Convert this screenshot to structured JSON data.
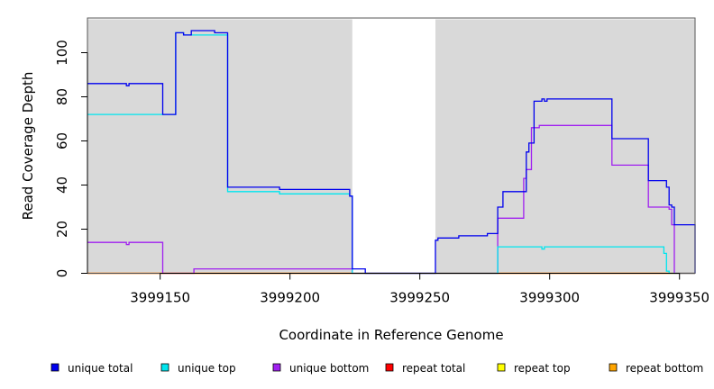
{
  "chart_data": {
    "type": "line",
    "title": "",
    "xlabel": "Coordinate in Reference Genome",
    "ylabel": "Read Coverage Depth",
    "xlim": [
      3999122,
      3999356
    ],
    "ylim": [
      0,
      115
    ],
    "xticks": [
      3999150,
      3999200,
      3999250,
      3999300,
      3999350
    ],
    "yticks": [
      0,
      20,
      40,
      60,
      80,
      100
    ],
    "shaded_regions": [
      {
        "x0": 3999122,
        "x1": 3999224,
        "color": "#d9d9d9"
      },
      {
        "x0": 3999256,
        "x1": 3999356,
        "color": "#d9d9d9"
      }
    ],
    "legend_position": "bottom",
    "series": [
      {
        "name": "unique total",
        "color": "#0000ee",
        "points": [
          [
            3999122,
            86
          ],
          [
            3999137,
            86
          ],
          [
            3999137,
            85
          ],
          [
            3999138,
            85
          ],
          [
            3999138,
            86
          ],
          [
            3999151,
            86
          ],
          [
            3999151,
            72
          ],
          [
            3999156,
            72
          ],
          [
            3999156,
            109
          ],
          [
            3999159,
            109
          ],
          [
            3999159,
            108
          ],
          [
            3999162,
            108
          ],
          [
            3999162,
            110
          ],
          [
            3999171,
            110
          ],
          [
            3999171,
            109
          ],
          [
            3999176,
            109
          ],
          [
            3999176,
            39
          ],
          [
            3999196,
            39
          ],
          [
            3999196,
            38
          ],
          [
            3999223,
            38
          ],
          [
            3999223,
            35
          ],
          [
            3999224,
            35
          ],
          [
            3999224,
            2
          ],
          [
            3999229,
            2
          ],
          [
            3999229,
            0
          ],
          [
            3999256,
            0
          ],
          [
            3999256,
            15
          ],
          [
            3999257,
            15
          ],
          [
            3999257,
            16
          ],
          [
            3999265,
            16
          ],
          [
            3999265,
            17
          ],
          [
            3999276,
            17
          ],
          [
            3999276,
            18
          ],
          [
            3999280,
            18
          ],
          [
            3999280,
            30
          ],
          [
            3999282,
            30
          ],
          [
            3999282,
            37
          ],
          [
            3999291,
            37
          ],
          [
            3999291,
            55
          ],
          [
            3999292,
            55
          ],
          [
            3999292,
            59
          ],
          [
            3999294,
            59
          ],
          [
            3999294,
            78
          ],
          [
            3999297,
            78
          ],
          [
            3999297,
            79
          ],
          [
            3999298,
            79
          ],
          [
            3999298,
            78
          ],
          [
            3999299,
            78
          ],
          [
            3999299,
            79
          ],
          [
            3999324,
            79
          ],
          [
            3999324,
            61
          ],
          [
            3999338,
            61
          ],
          [
            3999338,
            42
          ],
          [
            3999345,
            42
          ],
          [
            3999345,
            39
          ],
          [
            3999346,
            39
          ],
          [
            3999346,
            31
          ],
          [
            3999347,
            31
          ],
          [
            3999347,
            30
          ],
          [
            3999348,
            30
          ],
          [
            3999348,
            22
          ],
          [
            3999357,
            22
          ],
          [
            3999357,
            0
          ]
        ]
      },
      {
        "name": "unique top",
        "color": "#00e5ee",
        "points": [
          [
            3999122,
            72
          ],
          [
            3999156,
            72
          ],
          [
            3999156,
            109
          ],
          [
            3999159,
            109
          ],
          [
            3999159,
            108
          ],
          [
            3999176,
            108
          ],
          [
            3999176,
            37
          ],
          [
            3999196,
            37
          ],
          [
            3999196,
            36
          ],
          [
            3999223,
            36
          ],
          [
            3999223,
            35
          ],
          [
            3999224,
            35
          ],
          [
            3999224,
            0
          ],
          [
            3999280,
            0
          ],
          [
            3999280,
            12
          ],
          [
            3999297,
            12
          ],
          [
            3999297,
            11
          ],
          [
            3999298,
            11
          ],
          [
            3999298,
            12
          ],
          [
            3999344,
            12
          ],
          [
            3999344,
            9
          ],
          [
            3999345,
            9
          ],
          [
            3999345,
            1
          ],
          [
            3999346,
            1
          ],
          [
            3999346,
            0
          ],
          [
            3999357,
            0
          ]
        ]
      },
      {
        "name": "unique bottom",
        "color": "#a020f0",
        "points": [
          [
            3999122,
            14
          ],
          [
            3999137,
            14
          ],
          [
            3999137,
            13
          ],
          [
            3999138,
            13
          ],
          [
            3999138,
            14
          ],
          [
            3999151,
            14
          ],
          [
            3999151,
            0
          ],
          [
            3999163,
            0
          ],
          [
            3999163,
            2
          ],
          [
            3999224,
            2
          ],
          [
            3999224,
            0
          ],
          [
            3999280,
            0
          ],
          [
            3999280,
            25
          ],
          [
            3999290,
            25
          ],
          [
            3999290,
            43
          ],
          [
            3999291,
            43
          ],
          [
            3999291,
            47
          ],
          [
            3999293,
            47
          ],
          [
            3999293,
            66
          ],
          [
            3999296,
            66
          ],
          [
            3999296,
            67
          ],
          [
            3999324,
            67
          ],
          [
            3999324,
            49
          ],
          [
            3999338,
            49
          ],
          [
            3999338,
            30
          ],
          [
            3999346,
            30
          ],
          [
            3999346,
            29
          ],
          [
            3999347,
            29
          ],
          [
            3999347,
            22
          ],
          [
            3999348,
            22
          ],
          [
            3999348,
            0
          ],
          [
            3999357,
            0
          ]
        ]
      },
      {
        "name": "repeat total",
        "color": "#ff0000",
        "points": [
          [
            3999122,
            0
          ],
          [
            3999357,
            0
          ]
        ]
      },
      {
        "name": "repeat top",
        "color": "#ffff00",
        "points": [
          [
            3999122,
            0
          ],
          [
            3999357,
            0
          ]
        ]
      },
      {
        "name": "repeat bottom",
        "color": "#ffa500",
        "points": [
          [
            3999122,
            0
          ],
          [
            3999357,
            0
          ]
        ]
      }
    ]
  }
}
